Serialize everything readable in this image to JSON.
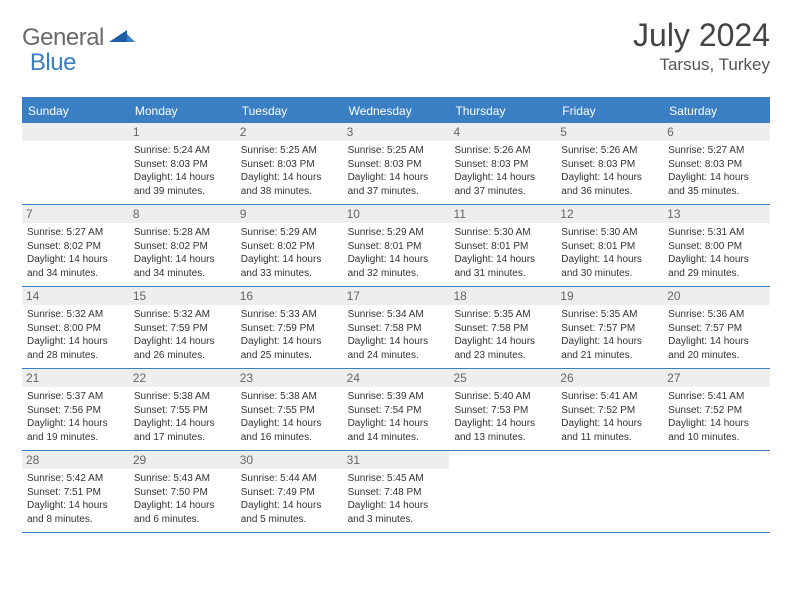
{
  "brand": {
    "general": "General",
    "blue": "Blue"
  },
  "title": "July 2024",
  "location": "Tarsus, Turkey",
  "style": {
    "accent": "#3a7fc4",
    "header_bg": "#3a7fc4",
    "header_text": "#ffffff",
    "daynum_bg": "#eeeeee",
    "daynum_text": "#666666",
    "body_text": "#333333",
    "title_text": "#444444",
    "month_fontsize": 32,
    "location_fontsize": 17,
    "weekday_fontsize": 12,
    "daynum_fontsize": 12,
    "body_fontsize": 10
  },
  "weekdays": [
    "Sunday",
    "Monday",
    "Tuesday",
    "Wednesday",
    "Thursday",
    "Friday",
    "Saturday"
  ],
  "weeks": [
    [
      {
        "num": "",
        "sunrise": "",
        "sunset": "",
        "daylight": ""
      },
      {
        "num": "1",
        "sunrise": "Sunrise: 5:24 AM",
        "sunset": "Sunset: 8:03 PM",
        "daylight": "Daylight: 14 hours and 39 minutes."
      },
      {
        "num": "2",
        "sunrise": "Sunrise: 5:25 AM",
        "sunset": "Sunset: 8:03 PM",
        "daylight": "Daylight: 14 hours and 38 minutes."
      },
      {
        "num": "3",
        "sunrise": "Sunrise: 5:25 AM",
        "sunset": "Sunset: 8:03 PM",
        "daylight": "Daylight: 14 hours and 37 minutes."
      },
      {
        "num": "4",
        "sunrise": "Sunrise: 5:26 AM",
        "sunset": "Sunset: 8:03 PM",
        "daylight": "Daylight: 14 hours and 37 minutes."
      },
      {
        "num": "5",
        "sunrise": "Sunrise: 5:26 AM",
        "sunset": "Sunset: 8:03 PM",
        "daylight": "Daylight: 14 hours and 36 minutes."
      },
      {
        "num": "6",
        "sunrise": "Sunrise: 5:27 AM",
        "sunset": "Sunset: 8:03 PM",
        "daylight": "Daylight: 14 hours and 35 minutes."
      }
    ],
    [
      {
        "num": "7",
        "sunrise": "Sunrise: 5:27 AM",
        "sunset": "Sunset: 8:02 PM",
        "daylight": "Daylight: 14 hours and 34 minutes."
      },
      {
        "num": "8",
        "sunrise": "Sunrise: 5:28 AM",
        "sunset": "Sunset: 8:02 PM",
        "daylight": "Daylight: 14 hours and 34 minutes."
      },
      {
        "num": "9",
        "sunrise": "Sunrise: 5:29 AM",
        "sunset": "Sunset: 8:02 PM",
        "daylight": "Daylight: 14 hours and 33 minutes."
      },
      {
        "num": "10",
        "sunrise": "Sunrise: 5:29 AM",
        "sunset": "Sunset: 8:01 PM",
        "daylight": "Daylight: 14 hours and 32 minutes."
      },
      {
        "num": "11",
        "sunrise": "Sunrise: 5:30 AM",
        "sunset": "Sunset: 8:01 PM",
        "daylight": "Daylight: 14 hours and 31 minutes."
      },
      {
        "num": "12",
        "sunrise": "Sunrise: 5:30 AM",
        "sunset": "Sunset: 8:01 PM",
        "daylight": "Daylight: 14 hours and 30 minutes."
      },
      {
        "num": "13",
        "sunrise": "Sunrise: 5:31 AM",
        "sunset": "Sunset: 8:00 PM",
        "daylight": "Daylight: 14 hours and 29 minutes."
      }
    ],
    [
      {
        "num": "14",
        "sunrise": "Sunrise: 5:32 AM",
        "sunset": "Sunset: 8:00 PM",
        "daylight": "Daylight: 14 hours and 28 minutes."
      },
      {
        "num": "15",
        "sunrise": "Sunrise: 5:32 AM",
        "sunset": "Sunset: 7:59 PM",
        "daylight": "Daylight: 14 hours and 26 minutes."
      },
      {
        "num": "16",
        "sunrise": "Sunrise: 5:33 AM",
        "sunset": "Sunset: 7:59 PM",
        "daylight": "Daylight: 14 hours and 25 minutes."
      },
      {
        "num": "17",
        "sunrise": "Sunrise: 5:34 AM",
        "sunset": "Sunset: 7:58 PM",
        "daylight": "Daylight: 14 hours and 24 minutes."
      },
      {
        "num": "18",
        "sunrise": "Sunrise: 5:35 AM",
        "sunset": "Sunset: 7:58 PM",
        "daylight": "Daylight: 14 hours and 23 minutes."
      },
      {
        "num": "19",
        "sunrise": "Sunrise: 5:35 AM",
        "sunset": "Sunset: 7:57 PM",
        "daylight": "Daylight: 14 hours and 21 minutes."
      },
      {
        "num": "20",
        "sunrise": "Sunrise: 5:36 AM",
        "sunset": "Sunset: 7:57 PM",
        "daylight": "Daylight: 14 hours and 20 minutes."
      }
    ],
    [
      {
        "num": "21",
        "sunrise": "Sunrise: 5:37 AM",
        "sunset": "Sunset: 7:56 PM",
        "daylight": "Daylight: 14 hours and 19 minutes."
      },
      {
        "num": "22",
        "sunrise": "Sunrise: 5:38 AM",
        "sunset": "Sunset: 7:55 PM",
        "daylight": "Daylight: 14 hours and 17 minutes."
      },
      {
        "num": "23",
        "sunrise": "Sunrise: 5:38 AM",
        "sunset": "Sunset: 7:55 PM",
        "daylight": "Daylight: 14 hours and 16 minutes."
      },
      {
        "num": "24",
        "sunrise": "Sunrise: 5:39 AM",
        "sunset": "Sunset: 7:54 PM",
        "daylight": "Daylight: 14 hours and 14 minutes."
      },
      {
        "num": "25",
        "sunrise": "Sunrise: 5:40 AM",
        "sunset": "Sunset: 7:53 PM",
        "daylight": "Daylight: 14 hours and 13 minutes."
      },
      {
        "num": "26",
        "sunrise": "Sunrise: 5:41 AM",
        "sunset": "Sunset: 7:52 PM",
        "daylight": "Daylight: 14 hours and 11 minutes."
      },
      {
        "num": "27",
        "sunrise": "Sunrise: 5:41 AM",
        "sunset": "Sunset: 7:52 PM",
        "daylight": "Daylight: 14 hours and 10 minutes."
      }
    ],
    [
      {
        "num": "28",
        "sunrise": "Sunrise: 5:42 AM",
        "sunset": "Sunset: 7:51 PM",
        "daylight": "Daylight: 14 hours and 8 minutes."
      },
      {
        "num": "29",
        "sunrise": "Sunrise: 5:43 AM",
        "sunset": "Sunset: 7:50 PM",
        "daylight": "Daylight: 14 hours and 6 minutes."
      },
      {
        "num": "30",
        "sunrise": "Sunrise: 5:44 AM",
        "sunset": "Sunset: 7:49 PM",
        "daylight": "Daylight: 14 hours and 5 minutes."
      },
      {
        "num": "31",
        "sunrise": "Sunrise: 5:45 AM",
        "sunset": "Sunset: 7:48 PM",
        "daylight": "Daylight: 14 hours and 3 minutes."
      },
      {
        "num": "",
        "sunrise": "",
        "sunset": "",
        "daylight": ""
      },
      {
        "num": "",
        "sunrise": "",
        "sunset": "",
        "daylight": ""
      },
      {
        "num": "",
        "sunrise": "",
        "sunset": "",
        "daylight": ""
      }
    ]
  ]
}
